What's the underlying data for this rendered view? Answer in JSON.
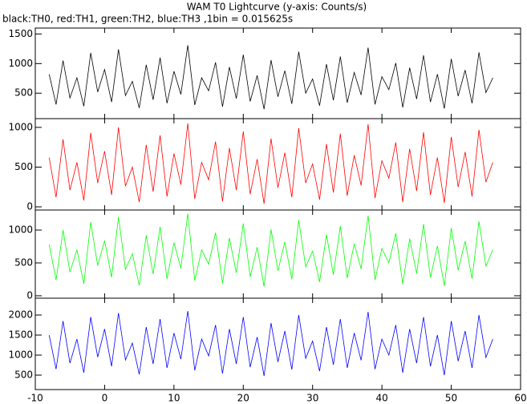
{
  "chart_data": [
    {
      "type": "line",
      "title": "WAM T0 Lightcurve (y-axis: Counts/s)",
      "subtitle": "black:TH0, red:TH1, green:TH2, blue:TH3 ,1bin = 0.015625s",
      "x": [
        -8,
        -7,
        -6,
        -5,
        -4,
        -3,
        -2,
        -1,
        0,
        1,
        2,
        3,
        4,
        5,
        6,
        7,
        8,
        9,
        10,
        11,
        12,
        13,
        14,
        15,
        16,
        17,
        18,
        19,
        20,
        21,
        22,
        23,
        24,
        25,
        26,
        27,
        28,
        29,
        30,
        31,
        32,
        33,
        34,
        35,
        36,
        37,
        38,
        39,
        40,
        41,
        42,
        43,
        44,
        45,
        46,
        47,
        48,
        49,
        50,
        51,
        52,
        53,
        54,
        55,
        56
      ],
      "xlim": [
        -10,
        60
      ],
      "ylim": [
        70,
        1600
      ],
      "yticks": [
        500,
        1000,
        1500
      ],
      "series": [
        {
          "color": "#000000",
          "values": [
            820,
            310,
            1050,
            420,
            760,
            280,
            1180,
            520,
            900,
            350,
            1240,
            460,
            700,
            250,
            980,
            390,
            1100,
            330,
            870,
            480,
            1310,
            300,
            760,
            540,
            1020,
            270,
            940,
            410,
            1150,
            360,
            800,
            230,
            1060,
            440,
            880,
            320,
            1200,
            500,
            740,
            290,
            990,
            380,
            1120,
            340,
            850,
            470,
            1270,
            310,
            780,
            560,
            1010,
            260,
            930,
            400,
            1140,
            350,
            820,
            240,
            1080,
            450,
            890,
            330,
            1190,
            510,
            760
          ]
        }
      ]
    },
    {
      "type": "line",
      "x": [
        -8,
        -7,
        -6,
        -5,
        -4,
        -3,
        -2,
        -1,
        0,
        1,
        2,
        3,
        4,
        5,
        6,
        7,
        8,
        9,
        10,
        11,
        12,
        13,
        14,
        15,
        16,
        17,
        18,
        19,
        20,
        21,
        22,
        23,
        24,
        25,
        26,
        27,
        28,
        29,
        30,
        31,
        32,
        33,
        34,
        35,
        36,
        37,
        38,
        39,
        40,
        41,
        42,
        43,
        44,
        45,
        46,
        47,
        48,
        49,
        50,
        51,
        52,
        53,
        54,
        55,
        56
      ],
      "xlim": [
        -10,
        60
      ],
      "ylim": [
        -40,
        1110
      ],
      "yticks": [
        0,
        500,
        1000
      ],
      "series": [
        {
          "color": "#ff0000",
          "values": [
            620,
            120,
            850,
            210,
            560,
            80,
            930,
            300,
            700,
            150,
            1000,
            260,
            500,
            60,
            780,
            190,
            900,
            130,
            670,
            280,
            1050,
            100,
            560,
            340,
            820,
            70,
            740,
            210,
            950,
            160,
            600,
            40,
            860,
            240,
            680,
            120,
            990,
            300,
            540,
            90,
            790,
            180,
            920,
            140,
            650,
            270,
            1040,
            110,
            580,
            360,
            810,
            60,
            730,
            200,
            940,
            150,
            620,
            50,
            880,
            250,
            690,
            130,
            970,
            310,
            560
          ]
        }
      ]
    },
    {
      "type": "line",
      "x": [
        -8,
        -7,
        -6,
        -5,
        -4,
        -3,
        -2,
        -1,
        0,
        1,
        2,
        3,
        4,
        5,
        6,
        7,
        8,
        9,
        10,
        11,
        12,
        13,
        14,
        15,
        16,
        17,
        18,
        19,
        20,
        21,
        22,
        23,
        24,
        25,
        26,
        27,
        28,
        29,
        30,
        31,
        32,
        33,
        34,
        35,
        36,
        37,
        38,
        39,
        40,
        41,
        42,
        43,
        44,
        45,
        46,
        47,
        48,
        49,
        50,
        51,
        52,
        53,
        54,
        55,
        56
      ],
      "xlim": [
        -10,
        60
      ],
      "ylim": [
        -37,
        1305
      ],
      "yticks": [
        0,
        500,
        1000
      ],
      "series": [
        {
          "color": "#00ff00",
          "values": [
            780,
            240,
            1000,
            360,
            700,
            180,
            1120,
            460,
            840,
            280,
            1200,
            400,
            640,
            160,
            920,
            330,
            1050,
            260,
            810,
            420,
            1250,
            230,
            700,
            480,
            960,
            190,
            880,
            350,
            1100,
            290,
            740,
            140,
            1010,
            380,
            820,
            250,
            1150,
            440,
            680,
            210,
            930,
            320,
            1060,
            270,
            790,
            410,
            1220,
            240,
            720,
            500,
            950,
            180,
            870,
            340,
            1090,
            280,
            760,
            150,
            1030,
            390,
            830,
            260,
            1130,
            450,
            700
          ]
        }
      ]
    },
    {
      "type": "line",
      "x": [
        -8,
        -7,
        -6,
        -5,
        -4,
        -3,
        -2,
        -1,
        0,
        1,
        2,
        3,
        4,
        5,
        6,
        7,
        8,
        9,
        10,
        11,
        12,
        13,
        14,
        15,
        16,
        17,
        18,
        19,
        20,
        21,
        22,
        23,
        24,
        25,
        26,
        27,
        28,
        29,
        30,
        31,
        32,
        33,
        34,
        35,
        36,
        37,
        38,
        39,
        40,
        41,
        42,
        43,
        44,
        45,
        46,
        47,
        48,
        49,
        50,
        51,
        52,
        53,
        54,
        55,
        56
      ],
      "xlim": [
        -10,
        60
      ],
      "xticks": [
        -10,
        0,
        10,
        20,
        30,
        40,
        50,
        60
      ],
      "ylim": [
        140,
        2420
      ],
      "yticks": [
        500,
        1000,
        1500,
        2000
      ],
      "series": [
        {
          "color": "#0000ff",
          "values": [
            1500,
            650,
            1850,
            800,
            1400,
            560,
            1950,
            950,
            1650,
            720,
            2050,
            880,
            1300,
            520,
            1700,
            780,
            1900,
            680,
            1550,
            900,
            2100,
            620,
            1400,
            980,
            1750,
            540,
            1650,
            780,
            1950,
            700,
            1450,
            480,
            1800,
            830,
            1600,
            640,
            2000,
            920,
            1350,
            600,
            1700,
            760,
            1900,
            680,
            1550,
            870,
            2080,
            650,
            1400,
            1000,
            1750,
            560,
            1650,
            800,
            1950,
            720,
            1500,
            500,
            1850,
            850,
            1600,
            680,
            2000,
            940,
            1400
          ]
        }
      ]
    }
  ]
}
